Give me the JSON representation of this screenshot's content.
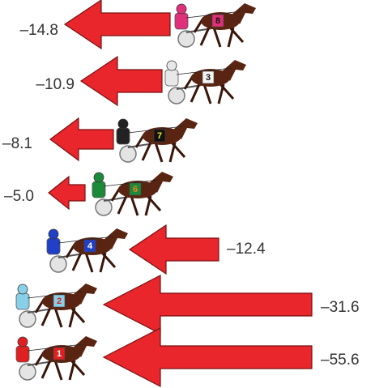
{
  "rows": [
    {
      "number": "8",
      "value": "–14.8"
    },
    {
      "number": "3",
      "value": "–10.9"
    },
    {
      "number": "7",
      "value": "–8.1"
    },
    {
      "number": "6",
      "value": "–5.0"
    },
    {
      "number": "4",
      "value": "–12.4"
    },
    {
      "number": "2",
      "value": "–31.6"
    },
    {
      "number": "1",
      "value": "–55.6"
    }
  ]
}
